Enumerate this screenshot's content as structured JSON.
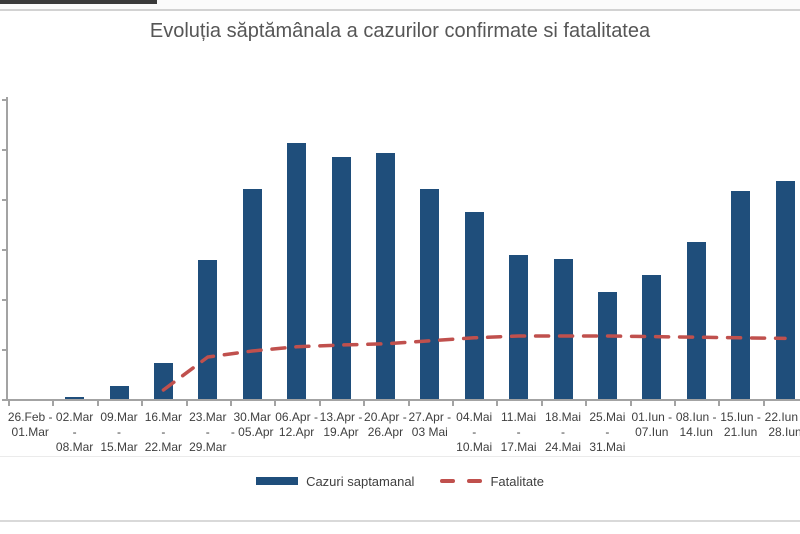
{
  "header": {
    "title": "Evoluția săptămânala a cazurilor confirmate si fatalitatea"
  },
  "chart_data": {
    "type": "bar",
    "title": "Evoluția săptămânala a cazurilor confirmate si fatalitatea",
    "categories": [
      {
        "range": "26.Feb - 01.Mar",
        "lines": [
          "26.Feb -",
          "01.Mar"
        ]
      },
      {
        "range": "02.Mar - 08.Mar",
        "lines": [
          "02.Mar",
          "-",
          "08.Mar"
        ]
      },
      {
        "range": "09.Mar - 15.Mar",
        "lines": [
          "09.Mar",
          "-",
          "15.Mar"
        ]
      },
      {
        "range": "16.Mar - 22.Mar",
        "lines": [
          "16.Mar",
          "-",
          "22.Mar"
        ]
      },
      {
        "range": "23.Mar - 29.Mar",
        "lines": [
          "23.Mar",
          "-",
          "29.Mar"
        ]
      },
      {
        "range": "30.Mar - 05.Apr",
        "lines": [
          "30.Mar",
          "- 05.Apr"
        ]
      },
      {
        "range": "06.Apr - 12.Apr",
        "lines": [
          "06.Apr -",
          "12.Apr"
        ]
      },
      {
        "range": "13.Apr - 19.Apr",
        "lines": [
          "13.Apr -",
          "19.Apr"
        ]
      },
      {
        "range": "20.Apr - 26.Apr",
        "lines": [
          "20.Apr -",
          "26.Apr"
        ]
      },
      {
        "range": "27.Apr - 03 Mai",
        "lines": [
          "27.Apr -",
          "03 Mai"
        ]
      },
      {
        "range": "04.Mai - 10.Mai",
        "lines": [
          "04.Mai",
          "-",
          "10.Mai"
        ]
      },
      {
        "range": "11.Mai - 17.Mai",
        "lines": [
          "11.Mai",
          "-",
          "17.Mai"
        ]
      },
      {
        "range": "18.Mai - 24.Mai",
        "lines": [
          "18.Mai",
          "-",
          "24.Mai"
        ]
      },
      {
        "range": "25.Mai - 31.Mai",
        "lines": [
          "25.Mai",
          "-",
          "31.Mai"
        ]
      },
      {
        "range": "01.Iun - 07.Iun",
        "lines": [
          "01.Iun -",
          "07.Iun"
        ]
      },
      {
        "range": "08.Iun - 14.Iun",
        "lines": [
          "08.Iun -",
          "14.Iun"
        ]
      },
      {
        "range": "15.Iun - 21.Iun",
        "lines": [
          "15.Iun -",
          "21.Iun"
        ]
      },
      {
        "range": "22.Iun - 28.Iun",
        "lines": [
          "22.Iun -",
          "28.Iun"
        ]
      }
    ],
    "series": [
      {
        "name": "Cazuri saptamanal",
        "type": "bar",
        "axis": "primary",
        "color": "#1f4e7b",
        "values": [
          5,
          20,
          130,
          360,
          1390,
          2100,
          2560,
          2420,
          2460,
          2100,
          1870,
          1440,
          1400,
          1070,
          1240,
          1570,
          2080,
          2180
        ]
      },
      {
        "name": "Fatalitate",
        "type": "line",
        "line_style": "dashed",
        "axis": "secondary",
        "color": "#c0504d",
        "values": [
          null,
          null,
          null,
          0.75,
          3.5,
          4.0,
          4.35,
          4.5,
          4.6,
          4.85,
          5.1,
          5.25,
          5.25,
          5.25,
          5.2,
          5.15,
          5.1,
          5.05
        ]
      }
    ],
    "ylim": [
      0,
      3000
    ],
    "y_tick_step": 500,
    "y_tick_labels_visible": false,
    "y2lim": [
      0,
      25
    ],
    "y2_tick_labels_visible": false,
    "gridlines": false,
    "legend_position": "bottom"
  },
  "legend": {
    "items": [
      {
        "label": "Cazuri saptamanal",
        "marker": "bar-swatch",
        "color": "#1f4e7b"
      },
      {
        "label": "Fatalitate",
        "marker": "dashed-line",
        "color": "#c0504d"
      }
    ]
  }
}
